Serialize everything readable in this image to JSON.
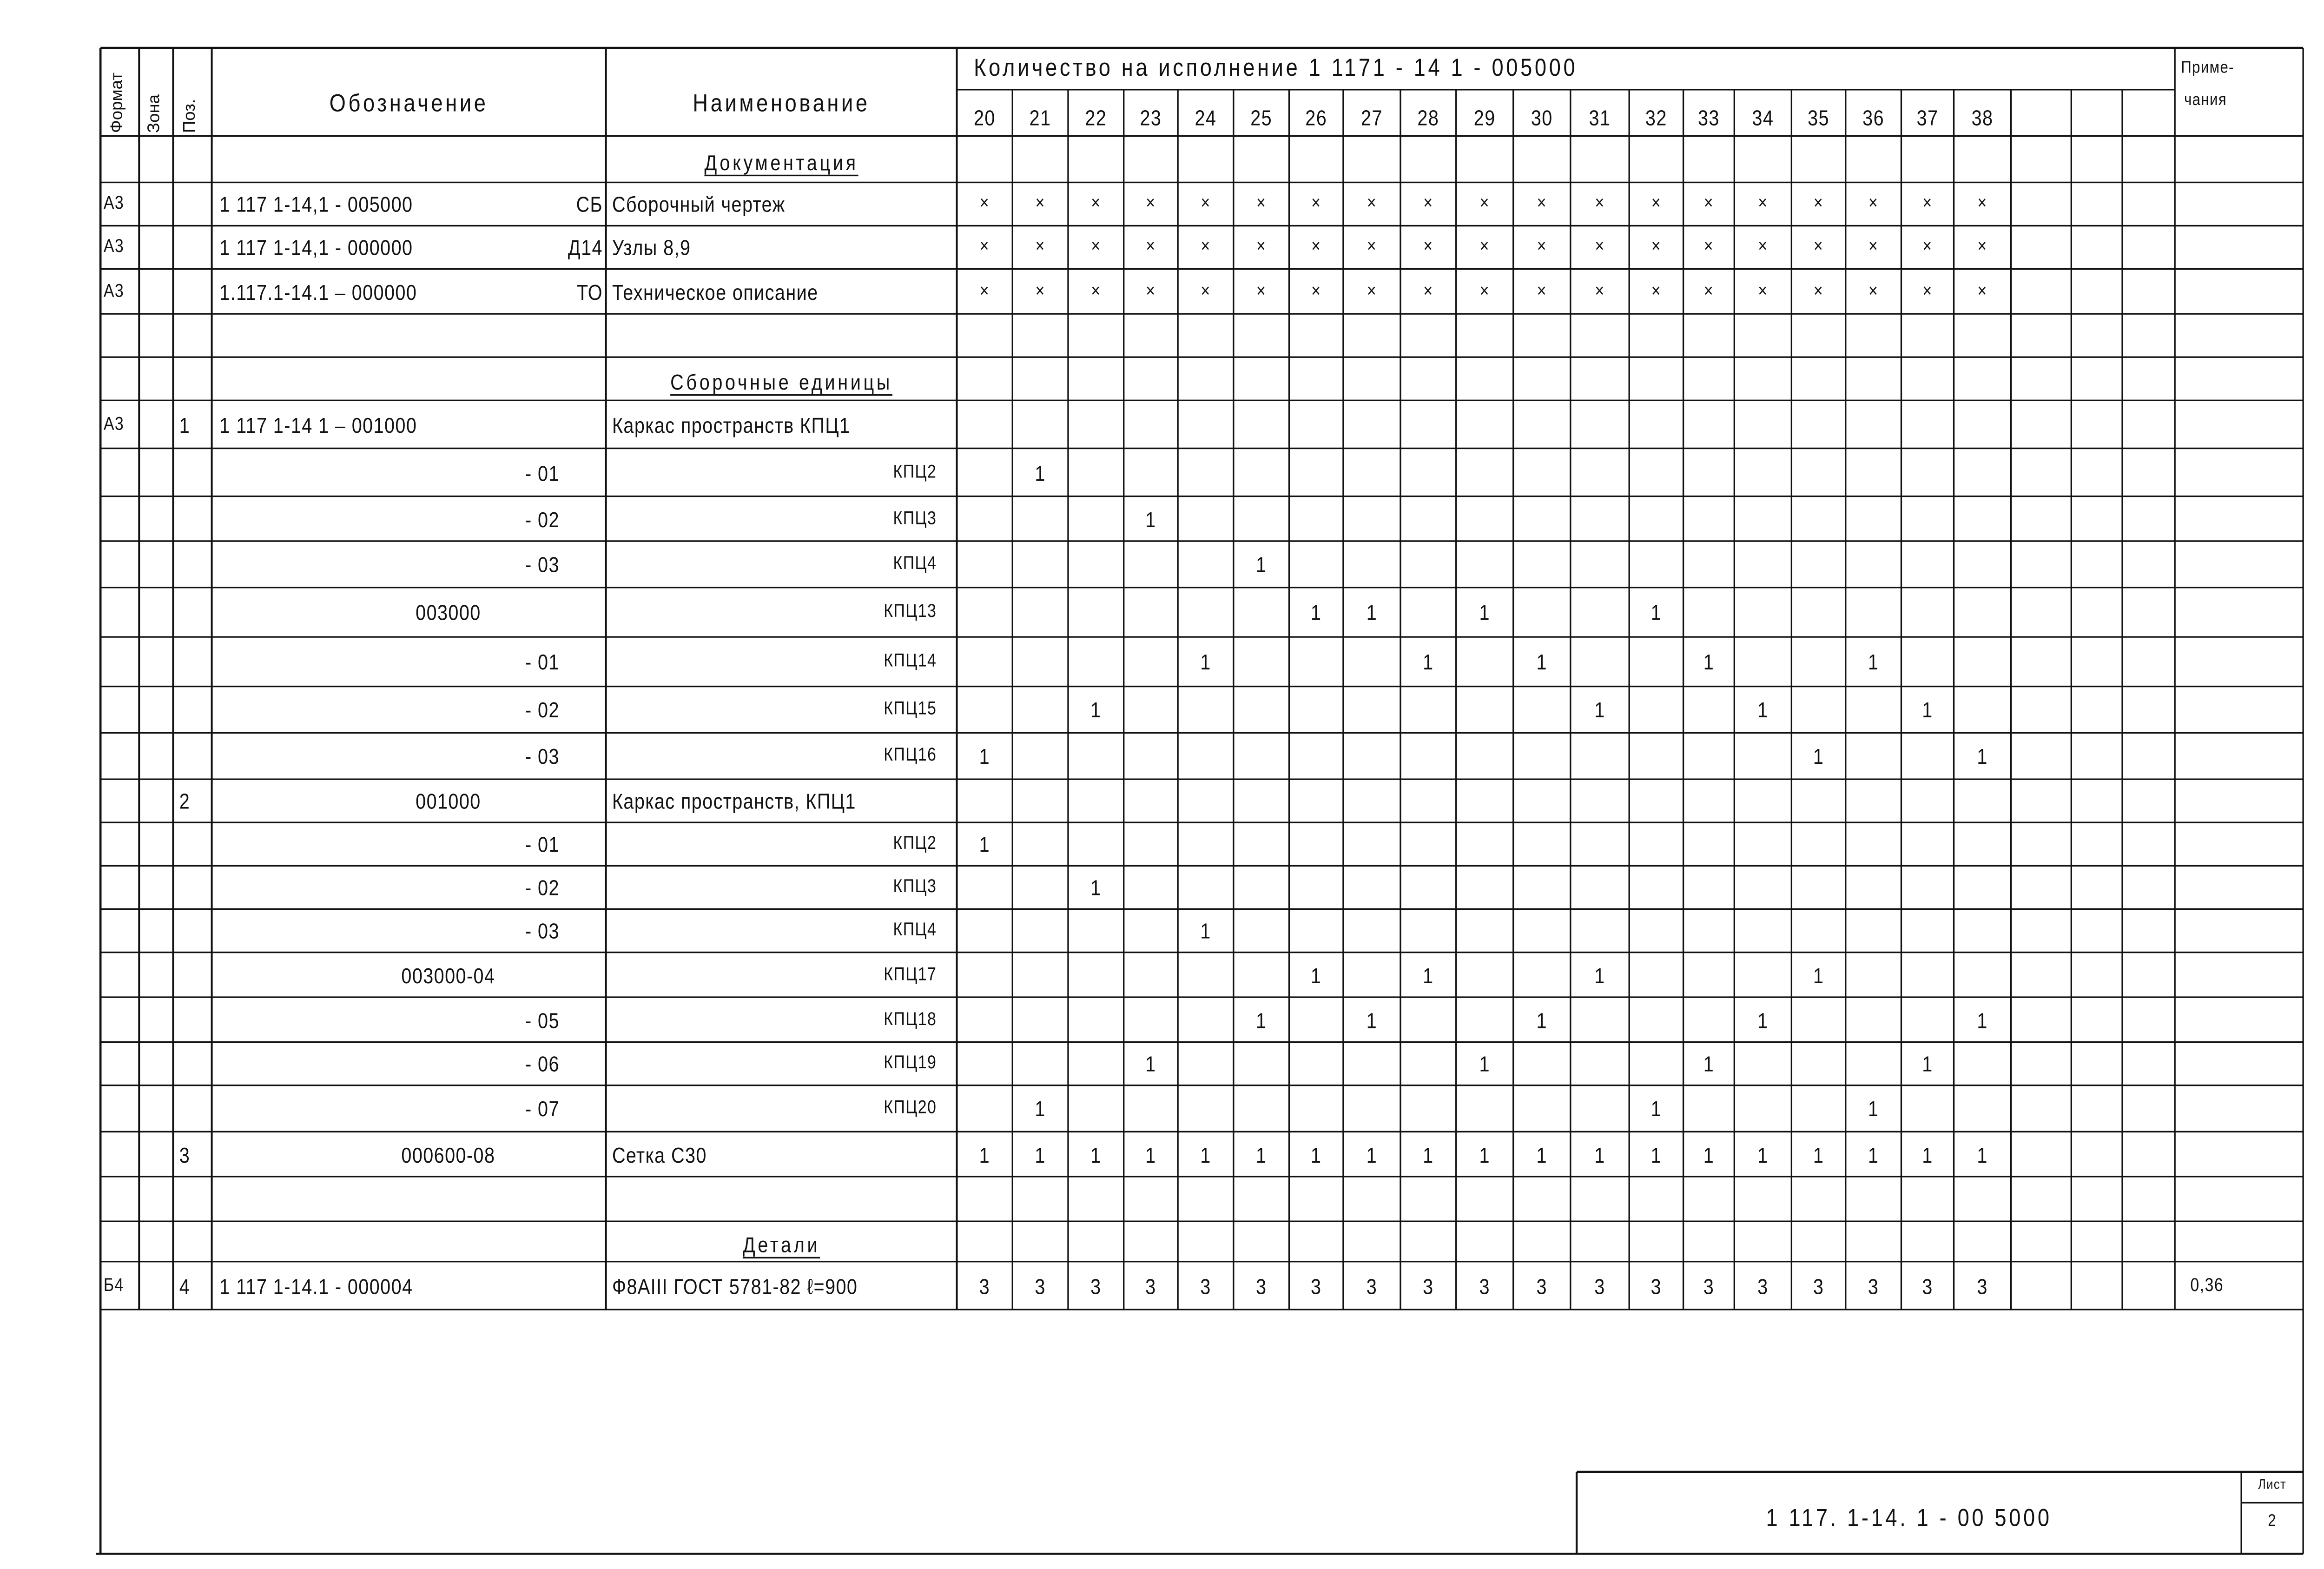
{
  "header": {
    "format": "Формат",
    "zone": "Зона",
    "pos": "Поз.",
    "designation": "Обозначение",
    "name": "Наименование",
    "qty_title": "Количество на исполнение 1 1171 - 14 1 - 005000",
    "qty_columns": [
      "20",
      "21",
      "22",
      "23",
      "24",
      "25",
      "26",
      "27",
      "28",
      "29",
      "30",
      "31",
      "32",
      "33",
      "34",
      "35",
      "36",
      "37",
      "38",
      "",
      ""
    ],
    "notes": "Приме-",
    "notes2": "чания"
  },
  "rows": [
    {
      "section": "Документация"
    },
    {
      "format": "А3",
      "designation": "1 117 1-14,1 - 005000",
      "suffix": "СБ",
      "name": "Сборочный чертеж",
      "qty": [
        "X",
        "X",
        "X",
        "X",
        "X",
        "X",
        "X",
        "X",
        "X",
        "X",
        "X",
        "X",
        "X",
        "X",
        "X",
        "X",
        "X",
        "X",
        "X"
      ]
    },
    {
      "format": "А3",
      "designation": "1 117 1-14,1 - 000000",
      "suffix": "Д14",
      "name": "Узлы 8,9",
      "qty": [
        "X",
        "X",
        "X",
        "X",
        "X",
        "X",
        "X",
        "X",
        "X",
        "X",
        "X",
        "X",
        "X",
        "X",
        "X",
        "X",
        "X",
        "X",
        "X"
      ]
    },
    {
      "format": "А3",
      "designation": "1.117.1-14.1 – 000000",
      "suffix": "ТО",
      "name": "Техническое описание",
      "qty": [
        "X",
        "X",
        "X",
        "X",
        "X",
        "X",
        "X",
        "X",
        "X",
        "X",
        "X",
        "X",
        "X",
        "X",
        "X",
        "X",
        "X",
        "X",
        "X"
      ]
    },
    {},
    {
      "section": "Сборочные единицы"
    },
    {
      "format": "А3",
      "pos": "1",
      "designation": "1 117 1-14 1 – 001000",
      "name": "Каркас пространств КПЦ1",
      "qty": []
    },
    {
      "designation_right": "- 01",
      "name_right": "КПЦ2",
      "qty": [
        "",
        "1"
      ]
    },
    {
      "designation_right": "- 02",
      "name_right": "КПЦ3",
      "qty": [
        "",
        "",
        "",
        "1"
      ]
    },
    {
      "designation_right": "- 03",
      "name_right": "КПЦ4",
      "qty": [
        "",
        "",
        "",
        "",
        "",
        "1"
      ]
    },
    {
      "designation_center": "003000",
      "name_right": "КПЦ13",
      "qty": [
        "",
        "",
        "",
        "",
        "",
        "",
        "1",
        "1",
        "",
        "1",
        "",
        "",
        "1"
      ]
    },
    {
      "designation_right": "- 01",
      "name_right": "КПЦ14",
      "qty": [
        "",
        "",
        "",
        "",
        "1",
        "",
        "",
        "",
        "1",
        "",
        "1",
        "",
        "",
        "1",
        "",
        "",
        "1"
      ]
    },
    {
      "designation_right": "- 02",
      "name_right": "КПЦ15",
      "qty": [
        "",
        "",
        "1",
        "",
        "",
        "",
        "",
        "",
        "",
        "",
        "",
        "1",
        "",
        "",
        "1",
        "",
        "",
        "1"
      ]
    },
    {
      "designation_right": "- 03",
      "name_right": "КПЦ16",
      "qty": [
        "1",
        "",
        "",
        "",
        "",
        "",
        "",
        "",
        "",
        "",
        "",
        "",
        "",
        "",
        "",
        "1",
        "",
        "",
        "1"
      ]
    },
    {
      "pos": "2",
      "designation_center": "001000",
      "name": "Каркас пространств, КПЦ1",
      "qty": []
    },
    {
      "designation_right": "- 01",
      "name_right": "КПЦ2",
      "qty": [
        "1"
      ]
    },
    {
      "designation_right": "- 02",
      "name_right": "КПЦ3",
      "qty": [
        "",
        "",
        "1"
      ]
    },
    {
      "designation_right": "- 03",
      "name_right": "КПЦ4",
      "qty": [
        "",
        "",
        "",
        "",
        "1"
      ]
    },
    {
      "designation_center": "003000-04",
      "name_right": "КПЦ17",
      "qty": [
        "",
        "",
        "",
        "",
        "",
        "",
        "1",
        "",
        "1",
        "",
        "",
        "1",
        "",
        "",
        "",
        "1"
      ]
    },
    {
      "designation_right": "- 05",
      "name_right": "КПЦ18",
      "qty": [
        "",
        "",
        "",
        "",
        "",
        "1",
        "",
        "1",
        "",
        "",
        "1",
        "",
        "",
        "",
        "1",
        "",
        "",
        "",
        "1"
      ]
    },
    {
      "designation_right": "- 06",
      "name_right": "КПЦ19",
      "qty": [
        "",
        "",
        "",
        "1",
        "",
        "",
        "",
        "",
        "",
        "1",
        "",
        "",
        "",
        "1",
        "",
        "",
        "",
        "1"
      ]
    },
    {
      "designation_right": "- 07",
      "name_right": "КПЦ20",
      "qty": [
        "",
        "1",
        "",
        "",
        "",
        "",
        "",
        "",
        "",
        "",
        "",
        "",
        "1",
        "",
        "",
        "",
        "1"
      ]
    },
    {
      "pos": "3",
      "designation_center": "000600-08",
      "name": "Сетка   С30",
      "qty": [
        "1",
        "1",
        "1",
        "1",
        "1",
        "1",
        "1",
        "1",
        "1",
        "1",
        "1",
        "1",
        "1",
        "1",
        "1",
        "1",
        "1",
        "1",
        "1"
      ]
    },
    {},
    {
      "section": "Детали"
    },
    {
      "format": "Б4",
      "pos": "4",
      "designation": "1 117 1-14.1  -  000004",
      "name": "Ф8АIII ГОСТ 5781-82 ℓ=900",
      "qty": [
        "3",
        "3",
        "3",
        "3",
        "3",
        "3",
        "3",
        "3",
        "3",
        "3",
        "3",
        "3",
        "3",
        "3",
        "3",
        "3",
        "3",
        "3",
        "3"
      ],
      "note": "0,36"
    }
  ],
  "stamp": {
    "code": "1 117. 1-14. 1 - 00 5000",
    "sheet_label": "Лист",
    "sheet_number": "2"
  }
}
